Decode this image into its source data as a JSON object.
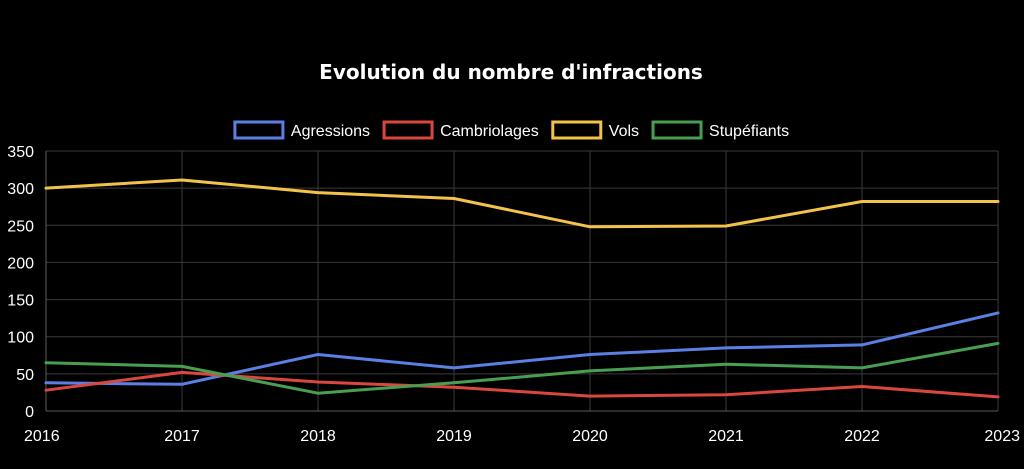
{
  "chart_data": {
    "type": "line",
    "title": "Evolution du nombre d'infractions",
    "xlabel": "",
    "ylabel": "",
    "categories": [
      "2016",
      "2017",
      "2018",
      "2019",
      "2020",
      "2021",
      "2022",
      "2023"
    ],
    "ylim": [
      0,
      350
    ],
    "yticks": [
      "0",
      "50",
      "100",
      "150",
      "200",
      "250",
      "300",
      "350"
    ],
    "grid": true,
    "legend_position": "top",
    "series": [
      {
        "name": "Agressions",
        "color": "#5b7fe3",
        "values": [
          38,
          36,
          76,
          58,
          76,
          85,
          89,
          132
        ]
      },
      {
        "name": "Cambriolages",
        "color": "#d9473f",
        "values": [
          28,
          52,
          39,
          32,
          20,
          22,
          33,
          19
        ]
      },
      {
        "name": "Vols",
        "color": "#f3c24b",
        "values": [
          300,
          311,
          294,
          286,
          248,
          249,
          282,
          282
        ]
      },
      {
        "name": "Stupéfiants",
        "color": "#4a9e52",
        "values": [
          65,
          60,
          24,
          38,
          54,
          63,
          58,
          91
        ]
      }
    ]
  }
}
